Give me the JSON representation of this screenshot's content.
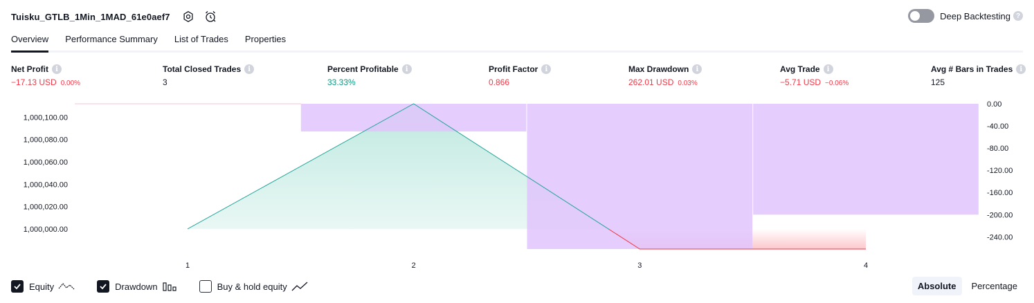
{
  "header": {
    "title": "Tuisku_GTLB_1Min_1MAD_61e0aef7",
    "settings_icon": "gear-icon",
    "alert_icon": "alarm-clock-icon"
  },
  "deep_backtesting": {
    "label": "Deep Backtesting",
    "enabled": false,
    "help": "?"
  },
  "tabs": [
    {
      "label": "Overview",
      "active": true
    },
    {
      "label": "Performance Summary",
      "active": false
    },
    {
      "label": "List of Trades",
      "active": false
    },
    {
      "label": "Properties",
      "active": false
    }
  ],
  "metrics": [
    {
      "title": "Net Profit",
      "value": "−17.13 USD",
      "pct": "0.00%",
      "color": "red"
    },
    {
      "title": "Total Closed Trades",
      "value": "3",
      "pct": "",
      "color": "plain"
    },
    {
      "title": "Percent Profitable",
      "value": "33.33%",
      "pct": "",
      "color": "green"
    },
    {
      "title": "Profit Factor",
      "value": "0.866",
      "pct": "",
      "color": "red"
    },
    {
      "title": "Max Drawdown",
      "value": "262.01 USD",
      "pct": "0.03%",
      "color": "red"
    },
    {
      "title": "Avg Trade",
      "value": "−5.71 USD",
      "pct": "−0.06%",
      "color": "red"
    },
    {
      "title": "Avg # Bars in Trades",
      "value": "125",
      "pct": "",
      "color": "plain"
    }
  ],
  "info_glyph": "i",
  "chart_data": {
    "type": "area",
    "x": [
      1,
      2,
      3,
      4
    ],
    "x_tick_labels": [
      "1",
      "2",
      "3",
      "4"
    ],
    "left_axis": {
      "tick_labels": [
        "1,000,100.00",
        "1,000,080.00",
        "1,000,060.00",
        "1,000,040.00",
        "1,000,020.00",
        "1,000,000.00"
      ],
      "ticks": [
        1000100,
        1000080,
        1000060,
        1000040,
        1000020,
        1000000
      ],
      "range": [
        999982,
        1000112
      ]
    },
    "right_axis": {
      "tick_labels": [
        "0.00",
        "-40.00",
        "-80.00",
        "-120.00",
        "-160.00",
        "-200.00",
        "-240.00"
      ],
      "ticks": [
        0,
        -40,
        -80,
        -120,
        -160,
        -200,
        -240
      ],
      "range": [
        -262,
        0
      ]
    },
    "series": [
      {
        "name": "Equity",
        "values": [
          1000000,
          1000112,
          999982,
          999982
        ],
        "color": "#26a69a"
      },
      {
        "name": "Drawdown",
        "bars": [
          {
            "x_from": 1.5,
            "x_to": 2.5,
            "value": -50
          },
          {
            "x_from": 2.5,
            "x_to": 3.5,
            "value": -262.01
          },
          {
            "x_from": 3.5,
            "x_to": 4.5,
            "value": -200
          }
        ],
        "color": "#e1c4fd"
      }
    ]
  },
  "legend": [
    {
      "label": "Equity",
      "checked": true,
      "icon": "equity-line-icon"
    },
    {
      "label": "Drawdown",
      "checked": true,
      "icon": "drawdown-bars-icon"
    },
    {
      "label": "Buy & hold equity",
      "checked": false,
      "icon": "buy-hold-line-icon"
    }
  ],
  "mode_switch": {
    "options": [
      "Absolute",
      "Percentage"
    ],
    "active": "Absolute"
  },
  "colors": {
    "equity_line": "#26a69a",
    "equity_fill": "#b7e6dc",
    "loss_line": "#f23645",
    "loss_fill": "#fbc4c9",
    "drawdown_bar": "#e1c4fd",
    "ref_line": "#f7c3d5"
  }
}
